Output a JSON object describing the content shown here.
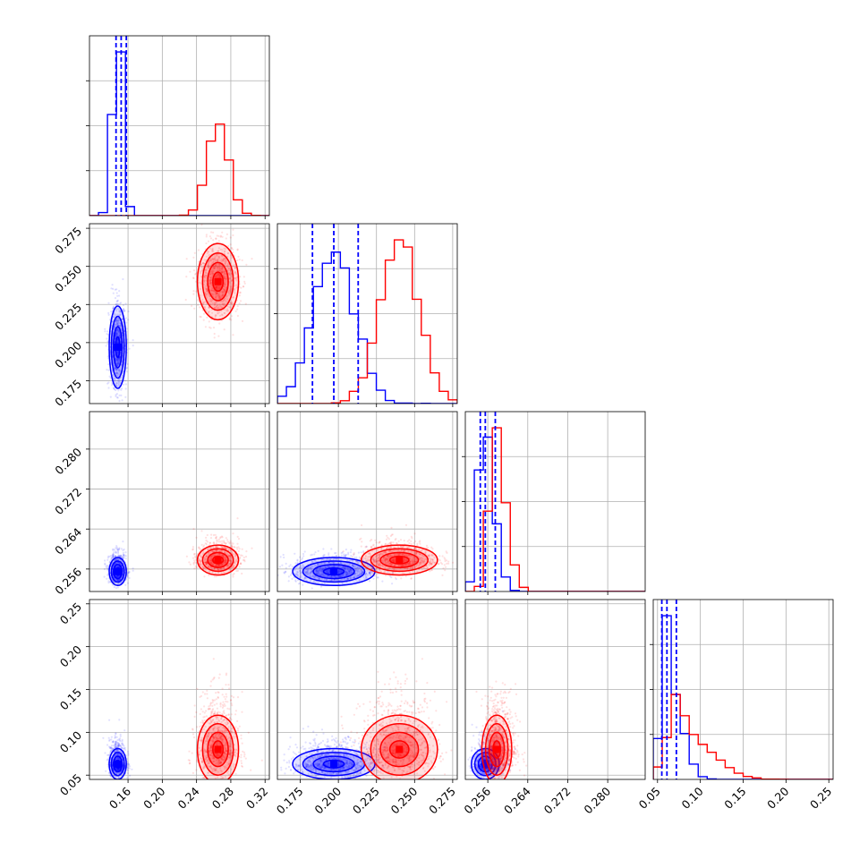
{
  "chart_data": {
    "type": "corner",
    "variables": 4,
    "series": [
      {
        "color": "#0000ff",
        "centers": [
          0.148,
          0.197,
          0.2555,
          0.063
        ],
        "spreads": [
          0.005,
          0.0135,
          0.0014,
          0.009
        ],
        "quantiles": [
          [
            0.146,
            0.152,
            0.158
          ],
          [
            0.183,
            0.197,
            0.213
          ],
          [
            0.2545,
            0.2555,
            0.2575
          ],
          [
            0.055,
            0.061,
            0.072
          ]
        ]
      },
      {
        "color": "#ff0000",
        "centers": [
          0.265,
          0.24,
          0.2578,
          0.08
        ],
        "spreads": [
          0.012,
          0.0125,
          0.0015,
          0.02
        ]
      }
    ],
    "axes": [
      {
        "range": [
          0.115,
          0.325
        ],
        "ticks": [
          0.16,
          0.2,
          0.24,
          0.28,
          0.32
        ],
        "tick_labels": [
          "0.16",
          "0.20",
          "0.24",
          "0.28",
          "0.32"
        ]
      },
      {
        "range": [
          0.16,
          0.278
        ],
        "ticks": [
          0.175,
          0.2,
          0.225,
          0.25,
          0.275
        ],
        "tick_labels": [
          "0.175",
          "0.200",
          "0.225",
          "0.250",
          "0.275"
        ]
      },
      {
        "range": [
          0.2515,
          0.2875
        ],
        "ticks": [
          0.256,
          0.264,
          0.272,
          0.28
        ],
        "tick_labels": [
          "0.256",
          "0.264",
          "0.272",
          "0.280"
        ]
      },
      {
        "range": [
          0.045,
          0.255
        ],
        "ticks": [
          0.05,
          0.1,
          0.15,
          0.2,
          0.25
        ],
        "tick_labels": [
          "0.05",
          "0.10",
          "0.15",
          "0.20",
          "0.25"
        ]
      }
    ],
    "grid": true,
    "legend": "none"
  }
}
